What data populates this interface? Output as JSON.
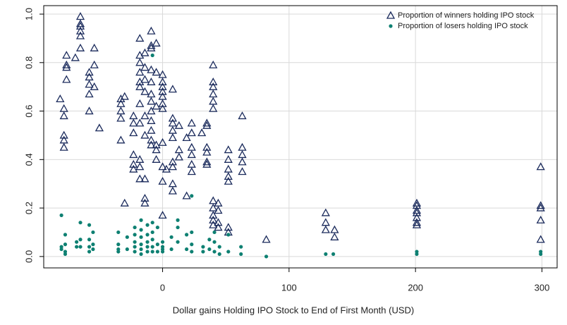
{
  "chart_data": {
    "type": "scatter",
    "x_label": "Dollar gains Holding IPO Stock to End of First Month (USD)",
    "xlim": [
      -94,
      312
    ],
    "xticks": [
      0,
      100,
      200,
      300
    ],
    "ylim": [
      -0.047,
      1.035
    ],
    "yticks": [
      {
        "value": 0,
        "label": "0.0"
      },
      0.2,
      0.4,
      0.6,
      0.8,
      {
        "value": 1,
        "label": "1.0"
      }
    ],
    "grid": true,
    "legend": "upper right",
    "series": [
      {
        "name": "Proportion of winners holding IPO stock",
        "color": "#1b2b5c",
        "marker": "triangle",
        "x": [
          -81,
          -78,
          -78,
          -78,
          -78,
          -78,
          -76,
          -76,
          -76,
          -76,
          -69,
          -65,
          -65,
          -65,
          -65,
          -65,
          -65,
          -58,
          -58,
          -58,
          -58,
          -58,
          -54,
          -54,
          -54,
          -50,
          -33,
          -33,
          -33,
          -33,
          -33,
          -30,
          -30,
          -23,
          -23,
          -23,
          -23,
          -23,
          -23,
          -18,
          -18,
          -18,
          -18,
          -18,
          -18,
          -18,
          -18,
          -18,
          -18,
          -18,
          -14,
          -14,
          -14,
          -14,
          -14,
          -14,
          -14,
          -14,
          -14,
          -9,
          -9,
          -9,
          -9,
          -9,
          -9,
          -9,
          -9,
          -9,
          -9,
          -9,
          -9,
          -5,
          -5,
          -5,
          -5,
          -5,
          -5,
          0,
          0,
          0,
          0,
          0,
          0,
          0,
          0,
          0,
          0,
          0,
          3,
          8,
          8,
          8,
          8,
          8,
          8,
          8,
          8,
          8,
          13,
          13,
          13,
          19,
          19,
          23,
          23,
          23,
          23,
          23,
          23,
          31,
          35,
          35,
          35,
          35,
          35,
          35,
          40,
          40,
          40,
          40,
          40,
          40,
          40,
          40,
          40,
          40,
          40,
          44,
          44,
          44,
          44,
          52,
          52,
          52,
          52,
          52,
          52,
          52,
          63,
          63,
          63,
          63,
          63,
          82,
          129,
          129,
          129,
          136,
          136,
          201,
          201,
          201,
          201,
          201,
          201,
          201,
          299,
          299,
          299,
          299,
          299
        ],
        "values": [
          0.65,
          0.61,
          0.58,
          0.5,
          0.48,
          0.45,
          0.83,
          0.79,
          0.78,
          0.73,
          0.82,
          0.99,
          0.96,
          0.95,
          0.93,
          0.91,
          0.86,
          0.76,
          0.74,
          0.71,
          0.67,
          0.6,
          0.86,
          0.79,
          0.7,
          0.53,
          0.65,
          0.63,
          0.6,
          0.57,
          0.48,
          0.22,
          0.66,
          0.58,
          0.55,
          0.51,
          0.42,
          0.38,
          0.36,
          0.9,
          0.83,
          0.8,
          0.76,
          0.72,
          0.7,
          0.63,
          0.55,
          0.4,
          0.37,
          0.32,
          0.84,
          0.78,
          0.73,
          0.68,
          0.58,
          0.5,
          0.32,
          0.24,
          0.22,
          0.93,
          0.87,
          0.86,
          0.77,
          0.72,
          0.67,
          0.64,
          0.6,
          0.56,
          0.52,
          0.48,
          0.46,
          0.88,
          0.76,
          0.62,
          0.46,
          0.44,
          0.4,
          0.75,
          0.72,
          0.7,
          0.68,
          0.66,
          0.63,
          0.61,
          0.47,
          0.37,
          0.31,
          0.17,
          0.36,
          0.69,
          0.57,
          0.55,
          0.52,
          0.49,
          0.39,
          0.37,
          0.3,
          0.27,
          0.54,
          0.44,
          0.41,
          0.49,
          0.25,
          0.55,
          0.51,
          0.45,
          0.42,
          0.38,
          0.35,
          0.51,
          0.55,
          0.54,
          0.45,
          0.43,
          0.39,
          0.38,
          0.79,
          0.72,
          0.7,
          0.67,
          0.64,
          0.61,
          0.23,
          0.2,
          0.17,
          0.15,
          0.13,
          0.22,
          0.19,
          0.14,
          0.12,
          0.44,
          0.4,
          0.36,
          0.33,
          0.31,
          0.12,
          0.1,
          0.58,
          0.45,
          0.42,
          0.39,
          0.35,
          0.07,
          0.18,
          0.14,
          0.11,
          0.11,
          0.08,
          0.22,
          0.21,
          0.19,
          0.18,
          0.16,
          0.14,
          0.13,
          0.37,
          0.21,
          0.2,
          0.15,
          0.07
        ]
      },
      {
        "name": "Proportion of losers holding IPO stock",
        "color": "#0e8072",
        "marker": "circle",
        "x": [
          -80,
          -80,
          -80,
          -77,
          -77,
          -77,
          -77,
          -68,
          -68,
          -65,
          -65,
          -65,
          -58,
          -58,
          -58,
          -58,
          -55,
          -55,
          -55,
          -35,
          -35,
          -35,
          -35,
          -28,
          -28,
          -22,
          -22,
          -22,
          -22,
          -22,
          -17,
          -17,
          -17,
          -17,
          -17,
          -17,
          -12,
          -12,
          -12,
          -12,
          -12,
          -8,
          -8,
          -8,
          -8,
          -8,
          -8,
          -4,
          -4,
          -4,
          0,
          0,
          0,
          0,
          7,
          7,
          12,
          12,
          12,
          19,
          19,
          23,
          23,
          23,
          23,
          32,
          32,
          37,
          37,
          41,
          41,
          41,
          45,
          45,
          52,
          52,
          62,
          62,
          82,
          129,
          135,
          201,
          201,
          299,
          299
        ],
        "values": [
          0.17,
          0.04,
          0.03,
          0.09,
          0.05,
          0.02,
          0.01,
          0.04,
          0.06,
          0.14,
          0.07,
          0.04,
          0.13,
          0.07,
          0.04,
          0.02,
          0.1,
          0.05,
          0.03,
          0.1,
          0.05,
          0.03,
          0.02,
          0.08,
          0.03,
          0.12,
          0.09,
          0.06,
          0.04,
          0.02,
          0.15,
          0.11,
          0.08,
          0.05,
          0.03,
          0.01,
          0.13,
          0.09,
          0.06,
          0.04,
          0.02,
          0.83,
          0.14,
          0.1,
          0.07,
          0.04,
          0.02,
          0.12,
          0.05,
          0.02,
          0.06,
          0.04,
          0.03,
          0.02,
          0.08,
          0.03,
          0.15,
          0.12,
          0.06,
          0.09,
          0.03,
          0.25,
          0.1,
          0.05,
          0.02,
          0.04,
          0.02,
          0.07,
          0.03,
          0.1,
          0.06,
          0.02,
          0.04,
          0.01,
          0.09,
          0.02,
          0.04,
          0.01,
          0,
          0.01,
          0.01,
          0.02,
          0.01,
          0.02,
          0.01
        ]
      }
    ]
  }
}
